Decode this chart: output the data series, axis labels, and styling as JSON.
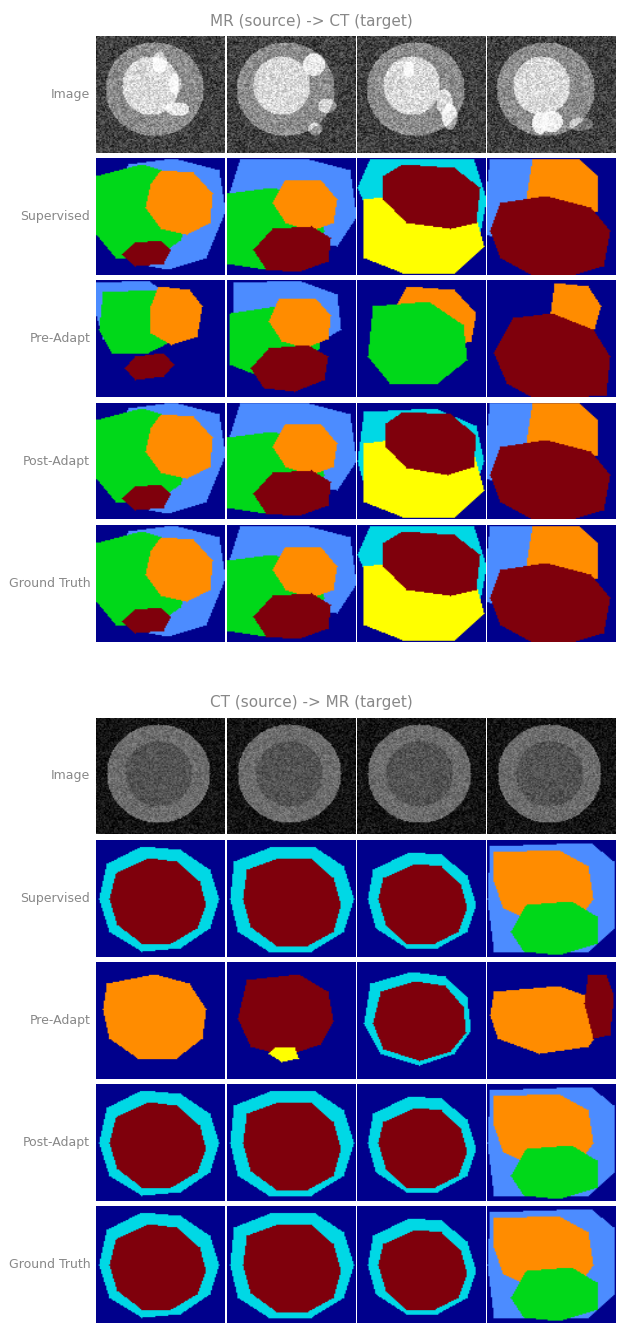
{
  "title1": "MR (source) -> CT (target)",
  "title2": "CT (source) -> MR (target)",
  "row_labels_top": [
    "Image",
    "Supervised",
    "Pre-Adapt",
    "Post-Adapt",
    "Ground Truth"
  ],
  "row_labels_bottom": [
    "Image",
    "Supervised",
    "Pre-Adapt",
    "Post-Adapt",
    "Ground Truth"
  ],
  "bg_blue": [
    0.0,
    0.0,
    0.55
  ],
  "col_blue_light": [
    0.3,
    0.55,
    1.0
  ],
  "col_cyan": [
    0.0,
    0.85,
    0.9
  ],
  "col_green": [
    0.0,
    0.85,
    0.1
  ],
  "col_orange": [
    1.0,
    0.55,
    0.0
  ],
  "col_yellow": [
    1.0,
    1.0,
    0.0
  ],
  "col_darkred": [
    0.5,
    0.0,
    0.05
  ],
  "col_red": [
    0.85,
    0.1,
    0.1
  ],
  "title_color": "#888888",
  "label_color": "#888888",
  "title_fontsize": 11,
  "label_fontsize": 9,
  "fig_width": 6.22,
  "fig_height": 13.3
}
